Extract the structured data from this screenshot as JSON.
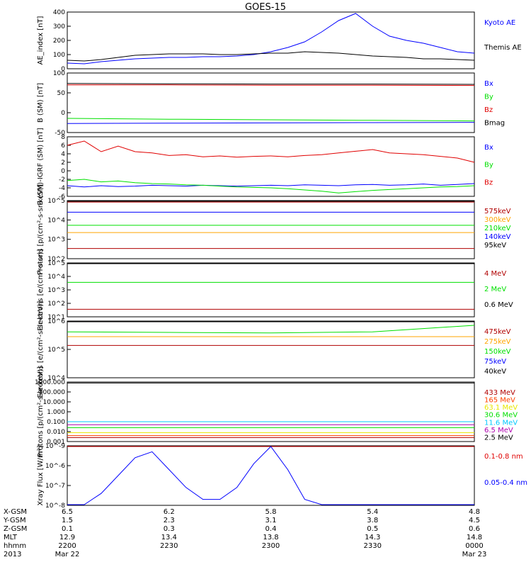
{
  "title": "GOES-15",
  "colors": {
    "blue": "#0000ff",
    "green": "#00e000",
    "red": "#e00000",
    "black": "#000000",
    "orange": "#ffa500",
    "yellow": "#e8e800",
    "cyan": "#00c8ff",
    "magenta": "#b000b0",
    "darkred": "#b00000",
    "orangered": "#ff4000"
  },
  "chart_data": [
    {
      "type": "line",
      "ylabel": "AE_index [nT]",
      "ylim": [
        0,
        400
      ],
      "yscale": "linear",
      "yticks": [
        "0",
        "100",
        "200",
        "300",
        "400"
      ],
      "x": [
        "2200",
        "2205",
        "2210",
        "2215",
        "2220",
        "2225",
        "2230",
        "2235",
        "2240",
        "2245",
        "2250",
        "2255",
        "2300",
        "2305",
        "2310",
        "2315",
        "2320",
        "2325",
        "2330",
        "2335",
        "2340",
        "2345",
        "2350",
        "2355",
        "0000"
      ],
      "series": [
        {
          "name": "Kyoto AE",
          "color": "blue",
          "values": [
            40,
            35,
            50,
            60,
            70,
            75,
            80,
            80,
            85,
            85,
            90,
            100,
            120,
            150,
            190,
            260,
            340,
            390,
            300,
            230,
            200,
            180,
            150,
            120,
            110
          ]
        },
        {
          "name": "Themis AE",
          "color": "black",
          "values": [
            60,
            55,
            65,
            80,
            95,
            100,
            105,
            105,
            105,
            100,
            100,
            105,
            110,
            110,
            120,
            115,
            110,
            100,
            90,
            85,
            80,
            70,
            70,
            65,
            60
          ]
        }
      ]
    },
    {
      "type": "line",
      "ylabel": "B (SM) [nT]",
      "ylim": [
        -60,
        150
      ],
      "yscale": "linear",
      "yticks": [
        "-50",
        "0",
        "50",
        "100"
      ],
      "x": [
        "2200",
        "2230",
        "2300",
        "2330",
        "0000"
      ],
      "series": [
        {
          "name": "Bx",
          "color": "blue",
          "values": [
            -28,
            -27,
            -26,
            -25,
            -24
          ]
        },
        {
          "name": "By",
          "color": "green",
          "values": [
            -10,
            -13,
            -15,
            -17,
            -19
          ]
        },
        {
          "name": "Bz",
          "color": "red",
          "values": [
            108,
            108,
            107,
            107,
            106
          ]
        },
        {
          "name": "Bmag",
          "color": "black",
          "values": [
            113,
            112,
            111,
            111,
            110
          ]
        }
      ]
    },
    {
      "type": "line",
      "ylabel": "B (SM)-IGRF (SM) [nT]",
      "ylim": [
        -6,
        8
      ],
      "yscale": "linear",
      "yticks": [
        "-6",
        "-4",
        "-2",
        "0",
        "2",
        "4",
        "6",
        "8"
      ],
      "x": [
        "2200",
        "2205",
        "2210",
        "2215",
        "2220",
        "2225",
        "2230",
        "2235",
        "2240",
        "2245",
        "2250",
        "2255",
        "2300",
        "2305",
        "2310",
        "2315",
        "2320",
        "2325",
        "2330",
        "2335",
        "2340",
        "2345",
        "2350",
        "2355",
        "0000"
      ],
      "series": [
        {
          "name": "Bx",
          "color": "blue",
          "values": [
            -3.5,
            -3.8,
            -3.5,
            -3.7,
            -3.6,
            -3.4,
            -3.5,
            -3.6,
            -3.4,
            -3.5,
            -3.6,
            -3.5,
            -3.4,
            -3.5,
            -3.3,
            -3.4,
            -3.5,
            -3.3,
            -3.2,
            -3.4,
            -3.3,
            -3.1,
            -3.4,
            -3.2,
            -3.0
          ]
        },
        {
          "name": "By",
          "color": "green",
          "values": [
            -2.3,
            -2.0,
            -2.6,
            -2.4,
            -2.8,
            -3.0,
            -3.1,
            -3.3,
            -3.4,
            -3.6,
            -3.8,
            -3.9,
            -4.0,
            -4.2,
            -4.5,
            -4.8,
            -5.2,
            -4.9,
            -4.6,
            -4.4,
            -4.2,
            -4.0,
            -3.8,
            -3.7,
            -3.5
          ]
        },
        {
          "name": "Bz",
          "color": "red",
          "values": [
            6.0,
            7.0,
            4.5,
            5.8,
            4.5,
            4.2,
            3.6,
            3.8,
            3.3,
            3.5,
            3.2,
            3.4,
            3.5,
            3.3,
            3.6,
            3.8,
            4.2,
            4.6,
            5.0,
            4.2,
            4.0,
            3.8,
            3.4,
            3.0,
            2.0
          ]
        }
      ]
    },
    {
      "type": "line",
      "ylabel": "Protons [p/(cm²-s-sr-keV)]",
      "ylim": [
        2,
        6
      ],
      "yscale": "log",
      "yticks": [
        "10^2",
        "10^3",
        "10^4",
        "10^5"
      ],
      "x": [
        "2200",
        "2230",
        "2300",
        "2330",
        "0000"
      ],
      "series": [
        {
          "name": "575keV",
          "color": "darkred",
          "values": [
            5.9,
            5.9,
            5.9,
            5.9,
            5.9
          ]
        },
        {
          "name": "300keV",
          "color": "orange",
          "values": [
            3.8,
            3.8,
            3.8,
            3.8,
            3.8
          ]
        },
        {
          "name": "210keV",
          "color": "green",
          "values": [
            4.3,
            4.3,
            4.3,
            4.3,
            4.3
          ]
        },
        {
          "name": "140keV",
          "color": "blue",
          "values": [
            5.2,
            5.2,
            5.2,
            5.2,
            5.2
          ]
        },
        {
          "name": "95keV",
          "color": "black",
          "values": [
            6.0,
            6.0,
            6.0,
            6.0,
            6.0
          ]
        },
        {
          "name": "",
          "color": "darkred",
          "values": [
            2.7,
            2.7,
            2.7,
            2.7,
            2.7
          ]
        }
      ]
    },
    {
      "type": "line",
      "ylabel": "Electrons [e/(cm²-s-sr)]",
      "ylim": [
        0.5,
        5.5
      ],
      "yscale": "log",
      "yticks": [
        "10^1",
        "10^2",
        "10^3",
        "10^4",
        "10^5"
      ],
      "x": [
        "2200",
        "2230",
        "2300",
        "2330",
        "0000"
      ],
      "series": [
        {
          "name": "4 MeV",
          "color": "darkred",
          "values": [
            1.2,
            1.2,
            1.2,
            1.2,
            1.2
          ]
        },
        {
          "name": "2 MeV",
          "color": "green",
          "values": [
            3.7,
            3.7,
            3.7,
            3.7,
            3.7
          ]
        },
        {
          "name": "0.6 MeV",
          "color": "black",
          "values": [
            5.5,
            5.5,
            5.5,
            5.5,
            5.5
          ]
        }
      ]
    },
    {
      "type": "line",
      "ylabel": "Electrons [e/(cm²-s-sr-keV)]",
      "ylim": [
        4,
        6
      ],
      "yscale": "log",
      "yticks": [
        "10^4",
        "10^5",
        "10^6"
      ],
      "x": [
        "2200",
        "2230",
        "2300",
        "2330",
        "0000"
      ],
      "series": [
        {
          "name": "475keV",
          "color": "darkred",
          "values": [
            5.14,
            5.14,
            5.14,
            5.14,
            5.14
          ]
        },
        {
          "name": "275keV",
          "color": "orange",
          "values": [
            5.45,
            5.45,
            5.45,
            5.45,
            5.45
          ]
        },
        {
          "name": "150keV",
          "color": "green",
          "values": [
            5.62,
            5.6,
            5.58,
            5.62,
            5.85
          ]
        },
        {
          "name": "75keV",
          "color": "blue",
          "values": [
            6.0,
            6.0,
            6.0,
            6.0,
            6.0
          ]
        },
        {
          "name": "40keV",
          "color": "black",
          "values": [
            6.0,
            6.0,
            6.0,
            6.0,
            6.0
          ]
        }
      ]
    },
    {
      "type": "line",
      "ylabel": "Protons [p/(cm²-s-sr-keV)]",
      "ylim": [
        -3,
        3
      ],
      "yscale": "log",
      "yticks": [
        "0.001",
        "0.010",
        "0.100",
        "1.000",
        "10.000",
        "100.000",
        "1000.000"
      ],
      "x": [
        "2200",
        "2230",
        "2300",
        "2330",
        "0000"
      ],
      "series": [
        {
          "name": "433 MeV",
          "color": "darkred",
          "values": [
            -2.6,
            -2.6,
            -2.6,
            -2.6,
            -2.6
          ]
        },
        {
          "name": "165 MeV",
          "color": "orangered",
          "values": [
            -2.4,
            -2.4,
            -2.4,
            -2.4,
            -2.4
          ]
        },
        {
          "name": "63.1 MeV",
          "color": "yellow",
          "values": [
            -2.1,
            -2.1,
            -2.1,
            -2.1,
            -2.1
          ]
        },
        {
          "name": "30.6 MeV",
          "color": "green",
          "values": [
            -1.6,
            -1.6,
            -1.6,
            -1.6,
            -1.6
          ]
        },
        {
          "name": "11.6 MeV",
          "color": "cyan",
          "values": [
            -1.0,
            -1.0,
            -1.0,
            -1.0,
            -1.0
          ]
        },
        {
          "name": "6.5 MeV",
          "color": "magenta",
          "values": [
            -1.3,
            -1.3,
            -1.3,
            -1.3,
            -1.3
          ]
        },
        {
          "name": "2.5 MeV",
          "color": "black",
          "values": [
            2.9,
            2.9,
            2.9,
            2.9,
            2.9
          ]
        }
      ]
    },
    {
      "type": "line",
      "ylabel": "Xray Flux [W/m²]",
      "ylim": [
        -9,
        -8
      ],
      "yscale": "log",
      "yticks": [
        "10^-8",
        "10^-7",
        "10^-6",
        "10^-9"
      ],
      "x": [
        "2200",
        "2205",
        "2210",
        "2215",
        "2220",
        "2225",
        "2230",
        "2235",
        "2240",
        "2245",
        "2250",
        "2255",
        "2300",
        "2305",
        "2310",
        "2315",
        "2320",
        "2325",
        "2330",
        "2335",
        "2340",
        "2345",
        "2350",
        "2355",
        "0000"
      ],
      "series": [
        {
          "name": "0.1-0.8 nm",
          "color": "red",
          "values": [
            -7.25,
            -7.25,
            -7.2,
            -7.2,
            -7.15,
            -7.15,
            -7.15,
            -7.1,
            -7.1,
            -7.1,
            -7.1,
            -7.1,
            -7.05,
            -7.1,
            -7.1,
            -7.1,
            -7.15,
            -7.15,
            -7.1,
            -7.15,
            -7.2,
            -7.2,
            -7.2,
            -7.2,
            -7.2
          ]
        },
        {
          "name": "0.05-0.4 nm",
          "color": "blue",
          "values": [
            -9.2,
            -9.0,
            -8.8,
            -8.5,
            -8.2,
            -8.1,
            -8.4,
            -8.7,
            -8.9,
            -8.9,
            -8.7,
            -8.3,
            -8.0,
            -8.4,
            -8.9,
            -9.2,
            -9.3,
            -9.3,
            -9.3,
            -9.3,
            -9.3,
            -9.3,
            -9.3,
            -9.3,
            -9.3
          ]
        }
      ]
    }
  ],
  "xaxis": {
    "rows": [
      {
        "label": "X-GSM",
        "values": [
          "6.5",
          "6.2",
          "5.8",
          "5.4",
          "4.8"
        ]
      },
      {
        "label": "Y-GSM",
        "values": [
          "1.5",
          "2.3",
          "3.1",
          "3.8",
          "4.5"
        ]
      },
      {
        "label": "Z-GSM",
        "values": [
          "0.1",
          "0.3",
          "0.4",
          "0.5",
          "0.6"
        ]
      },
      {
        "label": "MLT",
        "values": [
          "12.9",
          "13.4",
          "13.8",
          "14.3",
          "14.8"
        ]
      },
      {
        "label": "hhmm",
        "values": [
          "2200",
          "2230",
          "2300",
          "2330",
          "0000"
        ]
      },
      {
        "label": "2013",
        "values": [
          "Mar 22",
          "",
          "",
          "",
          "Mar 23"
        ]
      }
    ]
  }
}
